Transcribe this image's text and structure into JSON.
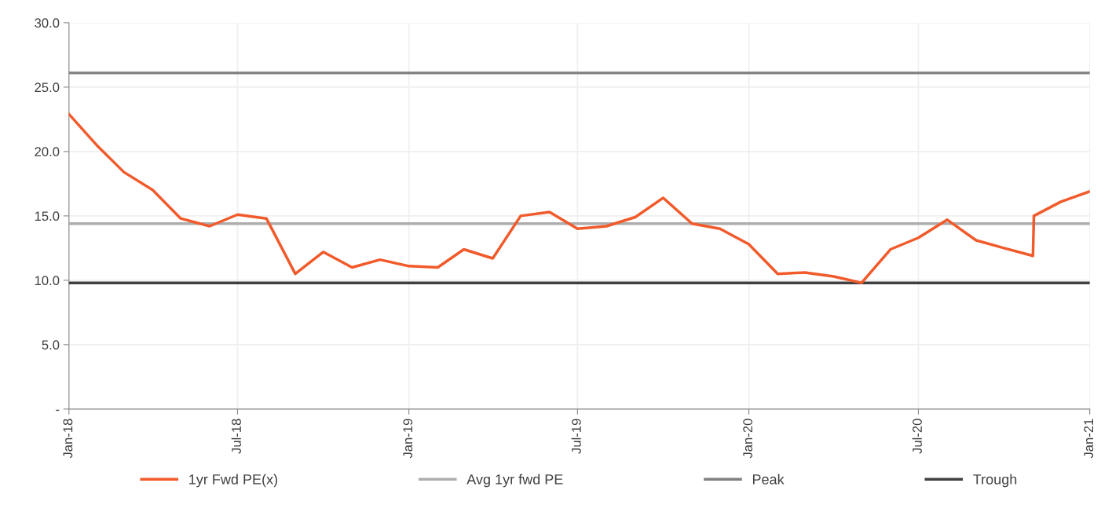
{
  "chart_data": {
    "type": "line",
    "x": [
      "2018-01",
      "2018-02",
      "2018-03",
      "2018-04",
      "2018-05",
      "2018-06",
      "2018-07",
      "2018-08",
      "2018-09",
      "2018-10",
      "2018-11",
      "2018-12",
      "2019-01",
      "2019-02",
      "2019-03",
      "2019-04",
      "2019-05",
      "2019-06",
      "2019-07",
      "2019-08",
      "2019-09",
      "2019-10",
      "2019-11",
      "2019-12",
      "2020-01",
      "2020-02",
      "2020-03",
      "2020-04",
      "2020-05",
      "2020-06",
      "2020-07",
      "2020-08",
      "2020-09",
      "2020-10",
      "2020-11-01",
      "2020-11-02",
      "2020-12",
      "2021-01"
    ],
    "series": [
      {
        "name": "1yr Fwd PE(x)",
        "color": "#f15a2b",
        "values": [
          22.9,
          20.4,
          18.4,
          17.0,
          14.8,
          14.2,
          15.1,
          14.8,
          10.5,
          12.2,
          11.0,
          11.6,
          11.1,
          11.0,
          12.4,
          11.7,
          15.0,
          15.3,
          14.0,
          14.2,
          14.9,
          16.4,
          14.4,
          14.0,
          12.8,
          10.5,
          10.6,
          10.3,
          9.8,
          12.4,
          13.3,
          14.7,
          13.1,
          12.5,
          11.9,
          15.0,
          16.1,
          16.9
        ]
      }
    ],
    "ref_lines": [
      {
        "axis": "y",
        "value": 14.4,
        "label": "Avg 1yr fwd PE",
        "color": "#adadad"
      },
      {
        "axis": "y",
        "value": 26.1,
        "label": "Peak",
        "color": "#7f7f7f"
      },
      {
        "axis": "y",
        "value": 9.8,
        "label": "Trough",
        "color": "#404040"
      }
    ],
    "xlim": [
      "2018-01",
      "2021-01"
    ],
    "xticks": [
      {
        "value": "2018-01",
        "label": "Jan-18"
      },
      {
        "value": "2018-07",
        "label": "Jul-18"
      },
      {
        "value": "2019-01",
        "label": "Jan-19"
      },
      {
        "value": "2019-07",
        "label": "Jul-19"
      },
      {
        "value": "2020-01",
        "label": "Jan-20"
      },
      {
        "value": "2020-07",
        "label": "Jul-20"
      },
      {
        "value": "2021-01",
        "label": "Jan-21"
      }
    ],
    "ylim": [
      0,
      30
    ],
    "yticks": [
      {
        "value": 0,
        "label": "-"
      },
      {
        "value": 5,
        "label": "5.0"
      },
      {
        "value": 10,
        "label": "10.0"
      },
      {
        "value": 15,
        "label": "15.0"
      },
      {
        "value": 20,
        "label": "20.0"
      },
      {
        "value": 25,
        "label": "25.0"
      },
      {
        "value": 30,
        "label": "30.0"
      }
    ],
    "grid": true,
    "legend": "bottom",
    "marker": "none",
    "line_style": "solid"
  }
}
